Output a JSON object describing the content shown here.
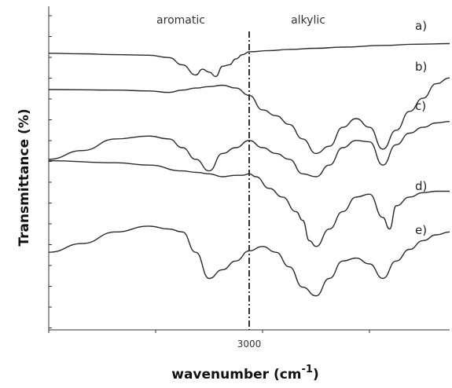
{
  "chart_data": {
    "type": "line",
    "title": "",
    "xlabel": "wavenumber (cm",
    "xlabel_superscript": "-1",
    "xlabel_close": ")",
    "ylabel": "Transmittance (%)",
    "x_ticks": [
      "3000"
    ],
    "reference_line": {
      "x": 3000,
      "style": "dash-dot"
    },
    "annotations": [
      "aromatic",
      "alkylic"
    ],
    "grid": false,
    "series": [
      {
        "name": "a)",
        "x": [
          3300,
          3250,
          3200,
          3150,
          3120,
          3100,
          3080,
          3070,
          3060,
          3050,
          3040,
          3030,
          3020,
          3010,
          3000,
          2970,
          2940,
          2900,
          2860,
          2800,
          2750,
          2700
        ],
        "y": [
          92.5,
          92.3,
          92.0,
          91.8,
          91.0,
          88.5,
          85.0,
          87.0,
          86.0,
          84.5,
          88.0,
          88.5,
          90.5,
          92.0,
          93.0,
          93.4,
          93.8,
          94.2,
          94.6,
          95.2,
          95.6,
          95.8
        ]
      },
      {
        "name": "b)",
        "x": [
          3300,
          3200,
          3150,
          3120,
          3100,
          3080,
          3060,
          3040,
          3020,
          3000,
          2980,
          2960,
          2940,
          2920,
          2900,
          2880,
          2860,
          2840,
          2820,
          2800,
          2780,
          2760,
          2740,
          2720,
          2700
        ],
        "y": [
          80.0,
          79.8,
          79.5,
          79.0,
          79.8,
          80.5,
          81.0,
          81.5,
          80.5,
          78.0,
          73.0,
          71.0,
          68.0,
          63.0,
          58.0,
          60.5,
          67.0,
          70.0,
          67.0,
          59.5,
          66.0,
          72.5,
          77.0,
          82.0,
          84.0
        ]
      },
      {
        "name": "c)",
        "x": [
          3300,
          3250,
          3200,
          3150,
          3120,
          3100,
          3080,
          3060,
          3040,
          3020,
          3000,
          2980,
          2960,
          2940,
          2920,
          2900,
          2880,
          2860,
          2840,
          2820,
          2800,
          2780,
          2760,
          2740,
          2720,
          2700
        ],
        "y": [
          56.0,
          59.0,
          63.0,
          64.0,
          63.0,
          60.0,
          56.0,
          52.0,
          58.0,
          60.0,
          62.5,
          60.0,
          58.0,
          56.0,
          51.0,
          50.0,
          54.0,
          60.0,
          62.5,
          62.0,
          54.0,
          61.0,
          65.0,
          67.0,
          68.5,
          69.0
        ]
      },
      {
        "name": "d)",
        "x": [
          3300,
          3200,
          3150,
          3100,
          3080,
          3060,
          3040,
          3020,
          3010,
          3000,
          2990,
          2970,
          2950,
          2930,
          2920,
          2910,
          2900,
          2880,
          2860,
          2840,
          2820,
          2800,
          2790,
          2780,
          2760,
          2740,
          2720,
          2700
        ],
        "y": [
          55.5,
          54.8,
          54.0,
          52.0,
          51.5,
          51.0,
          50.0,
          50.5,
          50.5,
          51.0,
          50.0,
          46.0,
          43.0,
          38.0,
          35.0,
          28.0,
          26.0,
          32.0,
          38.0,
          43.0,
          44.0,
          36.0,
          32.0,
          40.0,
          43.0,
          44.5,
          45.0,
          45.0
        ]
      },
      {
        "name": "e)",
        "x": [
          3300,
          3250,
          3200,
          3150,
          3120,
          3100,
          3080,
          3060,
          3040,
          3020,
          3000,
          2980,
          2960,
          2940,
          2920,
          2900,
          2880,
          2860,
          2840,
          2820,
          2800,
          2780,
          2760,
          2740,
          2720,
          2700
        ],
        "y": [
          24.0,
          27.0,
          31.0,
          33.0,
          32.0,
          31.0,
          24.0,
          15.0,
          18.0,
          21.0,
          24.5,
          26.0,
          24.0,
          19.0,
          12.0,
          9.0,
          15.0,
          21.0,
          22.0,
          20.0,
          15.0,
          21.0,
          25.0,
          28.0,
          30.0,
          31.0
        ]
      }
    ]
  }
}
